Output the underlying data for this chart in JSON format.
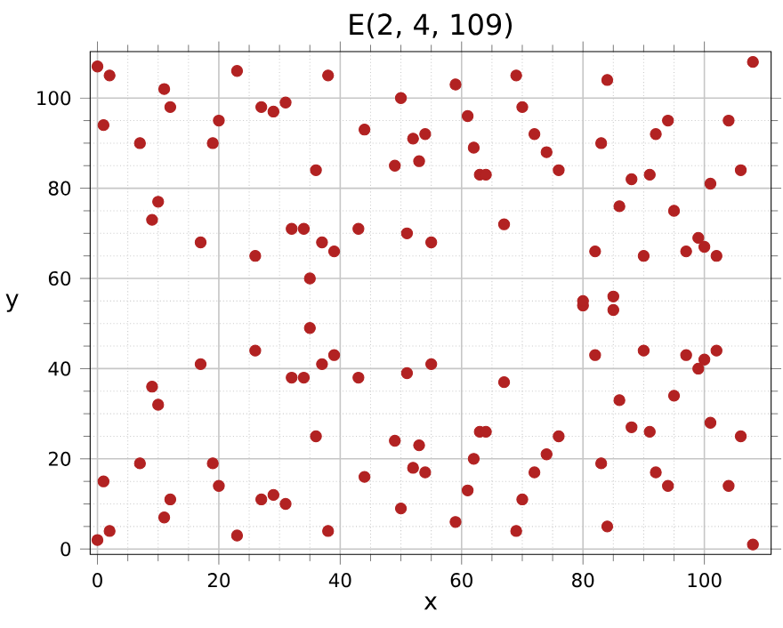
{
  "chart_data": {
    "type": "scatter",
    "title": "E(2, 4, 109)",
    "xlabel": "x",
    "ylabel": "y",
    "x": [
      0,
      0,
      1,
      1,
      2,
      2,
      7,
      7,
      9,
      9,
      10,
      10,
      11,
      11,
      12,
      12,
      17,
      17,
      19,
      19,
      20,
      20,
      23,
      23,
      26,
      26,
      27,
      27,
      29,
      29,
      31,
      31,
      32,
      32,
      34,
      34,
      35,
      35,
      36,
      36,
      37,
      37,
      38,
      38,
      39,
      39,
      43,
      43,
      44,
      44,
      49,
      49,
      50,
      50,
      51,
      51,
      52,
      52,
      53,
      53,
      54,
      54,
      55,
      55,
      59,
      59,
      61,
      61,
      62,
      62,
      63,
      63,
      64,
      64,
      67,
      67,
      69,
      69,
      70,
      70,
      72,
      72,
      74,
      74,
      76,
      76,
      80,
      80,
      82,
      82,
      83,
      83,
      84,
      84,
      85,
      85,
      86,
      86,
      88,
      88,
      90,
      90,
      91,
      91,
      92,
      92,
      94,
      94,
      95,
      95,
      97,
      97,
      99,
      99,
      100,
      100,
      101,
      101,
      102,
      102,
      104,
      104,
      106,
      106,
      108,
      108
    ],
    "values": [
      2,
      107,
      15,
      94,
      4,
      105,
      19,
      90,
      36,
      73,
      32,
      77,
      7,
      102,
      11,
      98,
      41,
      68,
      19,
      90,
      14,
      95,
      3,
      106,
      44,
      65,
      11,
      98,
      12,
      97,
      10,
      99,
      38,
      71,
      38,
      71,
      49,
      60,
      25,
      84,
      41,
      68,
      4,
      105,
      43,
      66,
      38,
      71,
      16,
      93,
      24,
      85,
      9,
      100,
      39,
      70,
      18,
      91,
      23,
      86,
      17,
      92,
      41,
      68,
      6,
      103,
      13,
      96,
      20,
      89,
      26,
      83,
      26,
      83,
      37,
      72,
      4,
      105,
      11,
      98,
      17,
      92,
      21,
      88,
      25,
      84,
      54,
      55,
      43,
      66,
      19,
      90,
      5,
      104,
      53,
      56,
      33,
      76,
      27,
      82,
      44,
      65,
      26,
      83,
      17,
      92,
      14,
      95,
      34,
      75,
      43,
      66,
      40,
      69,
      42,
      67,
      28,
      81,
      44,
      65,
      14,
      95,
      25,
      84,
      1,
      108
    ],
    "color": "#b22222",
    "marker": "circle",
    "grid": true,
    "xlim": [
      -1.2,
      111
    ],
    "ylim": [
      -1.2,
      110.3
    ],
    "xticks": [
      0,
      20,
      40,
      60,
      80,
      100
    ],
    "yticks": [
      0,
      20,
      40,
      60,
      80,
      100
    ]
  }
}
